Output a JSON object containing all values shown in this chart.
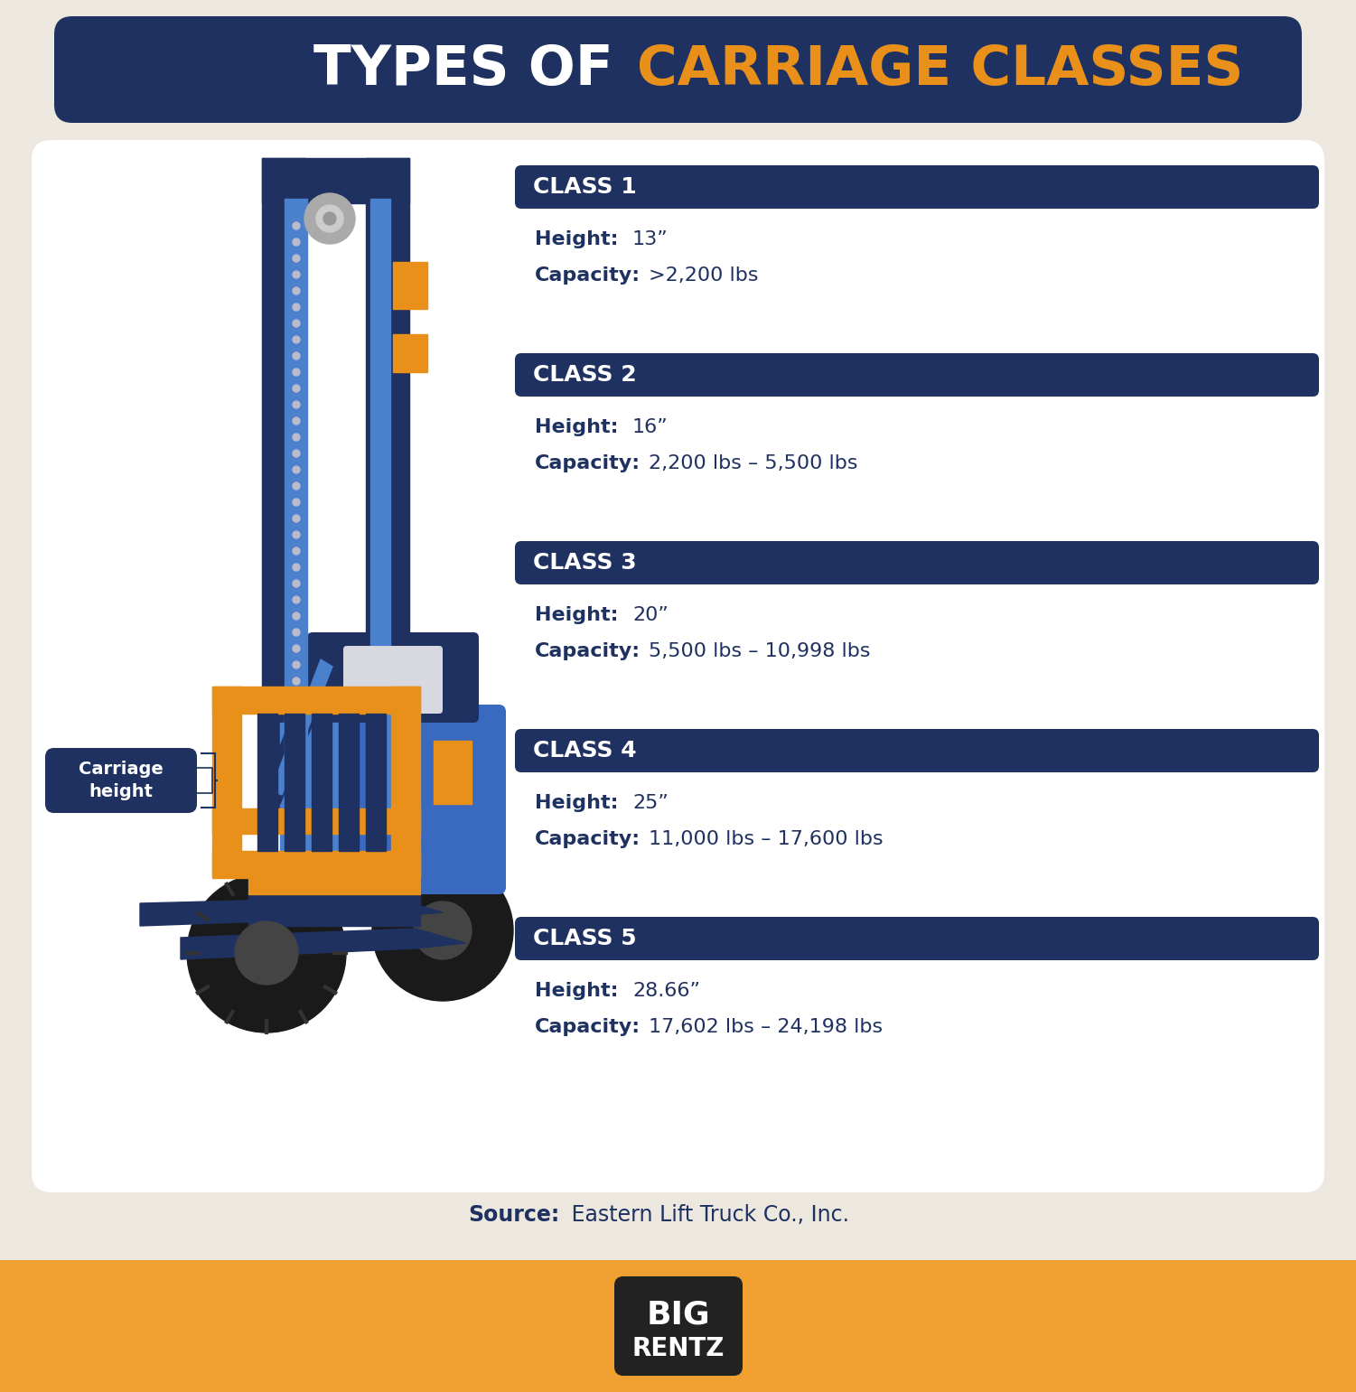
{
  "title_white": "TYPES OF ",
  "title_orange": "CARRIAGE CLASSES",
  "bg_color": "#ede8df",
  "header_bg": "#1e3160",
  "orange_footer_bg": "#f0a030",
  "class_header_bg": "#1e3160",
  "body_text_dark": "#1e3160",
  "orange_color": "#e8901a",
  "blue_body": "#3a6abf",
  "blue_dark": "#1e3160",
  "blue_mid": "#4a80cc",
  "classes": [
    {
      "name": "CLASS 1",
      "height": "13”",
      "capacity": ">2,200 lbs"
    },
    {
      "name": "CLASS 2",
      "height": "16”",
      "capacity": "2,200 lbs – 5,500 lbs"
    },
    {
      "name": "CLASS 3",
      "height": "20”",
      "capacity": "5,500 lbs – 10,998 lbs"
    },
    {
      "name": "CLASS 4",
      "height": "25”",
      "capacity": "11,000 lbs – 17,600 lbs"
    },
    {
      "name": "CLASS 5",
      "height": "28.66”",
      "capacity": "17,602 lbs – 24,198 lbs"
    }
  ],
  "source_bold": "Source:",
  "source_normal": " Eastern Lift Truck Co., Inc.",
  "label_text": "Carriage\nheight",
  "title_fontsize": 44,
  "class_header_fontsize": 18,
  "class_body_fontsize": 16
}
